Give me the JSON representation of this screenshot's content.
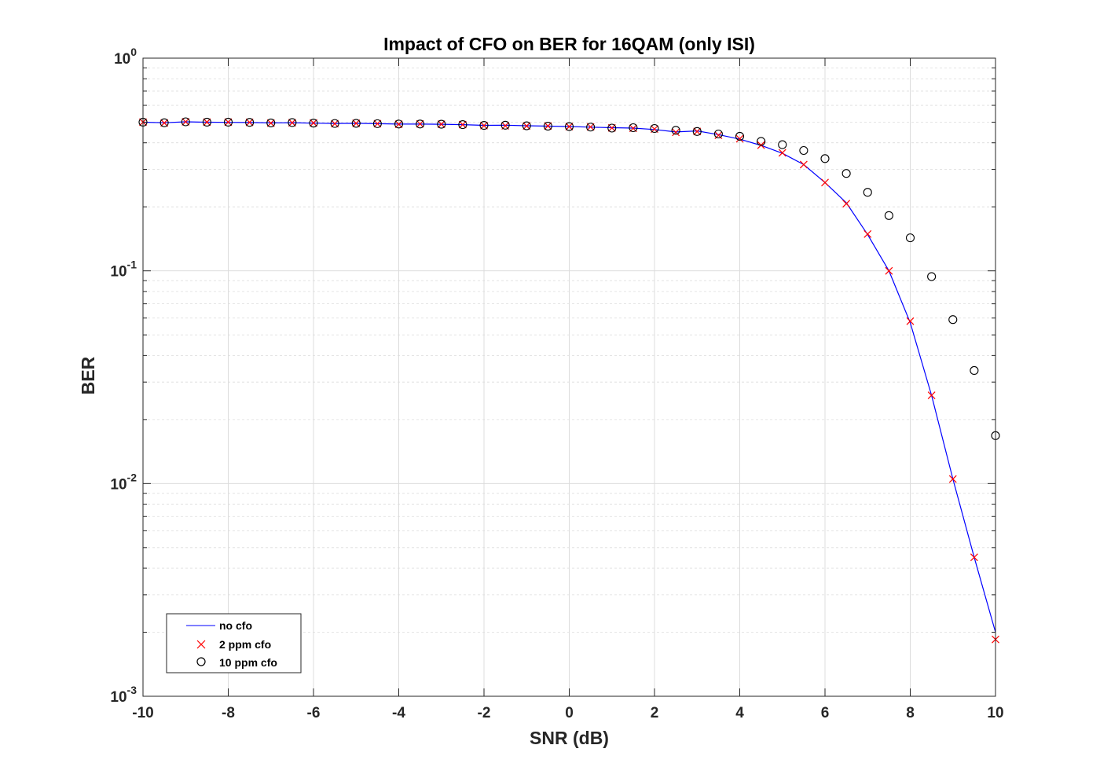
{
  "chart_data": {
    "type": "scatter",
    "title": "Impact of CFO on BER for 16QAM (only ISI)",
    "xlabel": "SNR (dB)",
    "ylabel": "BER",
    "xlim": [
      -10,
      10
    ],
    "ylim": [
      0.001,
      1
    ],
    "yscale": "log",
    "grid": true,
    "minor_grid": true,
    "legend_position": "bottom-left",
    "x_ticks": [
      "-10",
      "-8",
      "-6",
      "-4",
      "-2",
      "0",
      "2",
      "4",
      "6",
      "8",
      "10"
    ],
    "y_ticks": [
      {
        "base": "10",
        "exp": "0"
      },
      {
        "base": "10",
        "exp": "-1"
      },
      {
        "base": "10",
        "exp": "-2"
      },
      {
        "base": "10",
        "exp": "-3"
      }
    ],
    "x": [
      -10,
      -9.5,
      -9,
      -8.5,
      -8,
      -7.5,
      -7,
      -6.5,
      -6,
      -5.5,
      -5,
      -4.5,
      -4,
      -3.5,
      -3,
      -2.5,
      -2,
      -1.5,
      -1,
      -0.5,
      0,
      0.5,
      1,
      1.5,
      2,
      2.5,
      3,
      3.5,
      4,
      4.5,
      5,
      5.5,
      6,
      6.5,
      7,
      7.5,
      8,
      8.5,
      9,
      9.5,
      10
    ],
    "series": [
      {
        "name": "no cfo",
        "style": "line",
        "color": "#0000ff",
        "values": [
          0.5,
          0.497,
          0.502,
          0.5,
          0.499,
          0.498,
          0.496,
          0.497,
          0.495,
          0.493,
          0.494,
          0.492,
          0.49,
          0.49,
          0.489,
          0.487,
          0.483,
          0.484,
          0.481,
          0.479,
          0.477,
          0.474,
          0.471,
          0.469,
          0.462,
          0.45,
          0.455,
          0.437,
          0.416,
          0.389,
          0.357,
          0.316,
          0.26,
          0.209,
          0.148,
          0.1,
          0.057,
          0.026,
          0.0105,
          0.0045,
          0.002
        ]
      },
      {
        "name": "2 ppm cfo",
        "style": "x-marker",
        "color": "#ff0000",
        "values": [
          0.5,
          0.496,
          0.502,
          0.5,
          0.5,
          0.499,
          0.495,
          0.497,
          0.496,
          0.492,
          0.494,
          0.492,
          0.489,
          0.491,
          0.489,
          0.487,
          0.482,
          0.481,
          0.48,
          0.48,
          0.477,
          0.475,
          0.47,
          0.468,
          0.464,
          0.448,
          0.452,
          0.434,
          0.418,
          0.39,
          0.359,
          0.316,
          0.26,
          0.207,
          0.149,
          0.1,
          0.058,
          0.026,
          0.0105,
          0.0045,
          0.00185
        ]
      },
      {
        "name": "10 ppm cfo",
        "style": "circle-marker",
        "color": "#000000",
        "values": [
          0.5,
          0.497,
          0.502,
          0.5,
          0.5,
          0.499,
          0.496,
          0.498,
          0.495,
          0.493,
          0.494,
          0.492,
          0.49,
          0.49,
          0.489,
          0.487,
          0.483,
          0.484,
          0.481,
          0.479,
          0.477,
          0.474,
          0.469,
          0.471,
          0.467,
          0.458,
          0.452,
          0.44,
          0.429,
          0.406,
          0.392,
          0.368,
          0.337,
          0.287,
          0.234,
          0.182,
          0.143,
          0.094,
          0.059,
          0.034,
          0.0168
        ]
      }
    ]
  }
}
